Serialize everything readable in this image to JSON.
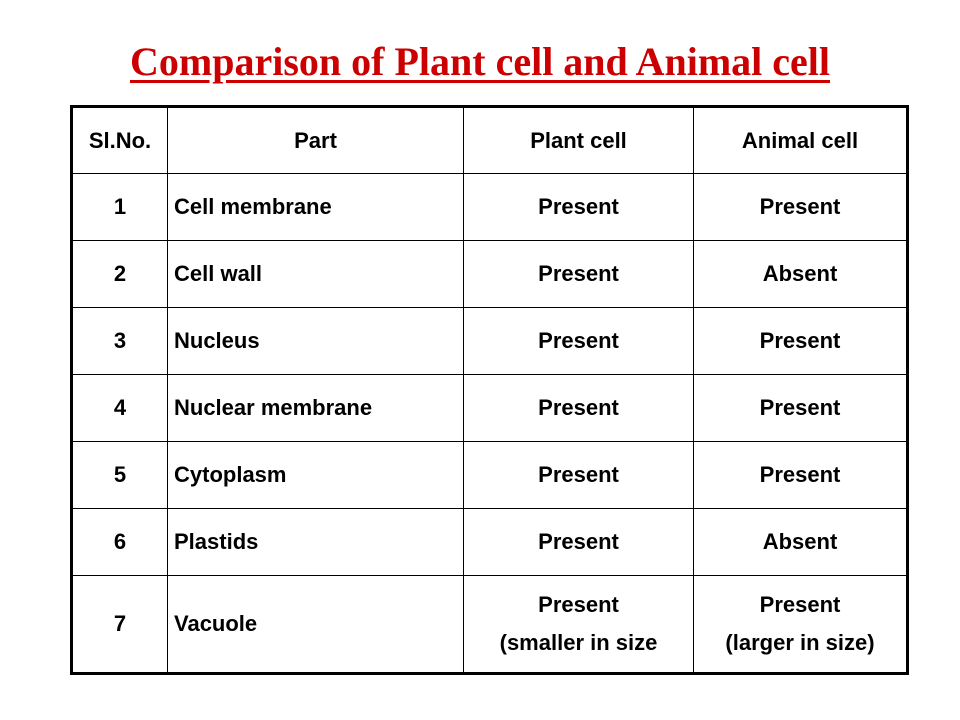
{
  "title": "Comparison of Plant cell and Animal cell",
  "table": {
    "headers": [
      "Sl.No.",
      "Part",
      "Plant cell",
      "Animal cell"
    ],
    "rows": [
      {
        "no": "1",
        "part": "Cell membrane",
        "plant": "Present",
        "animal": "Present"
      },
      {
        "no": "2",
        "part": "Cell wall",
        "plant": "Present",
        "animal": "Absent"
      },
      {
        "no": "3",
        "part": "Nucleus",
        "plant": "Present",
        "animal": "Present"
      },
      {
        "no": "4",
        "part": "Nuclear membrane",
        "plant": "Present",
        "animal": "Present"
      },
      {
        "no": "5",
        "part": "Cytoplasm",
        "plant": "Present",
        "animal": "Present"
      },
      {
        "no": "6",
        "part": "Plastids",
        "plant": "Present",
        "animal": "Absent"
      }
    ],
    "last_row": {
      "no": "7",
      "part": "Vacuole",
      "plant": "Present",
      "plant_note": "(smaller in size",
      "animal": "Present",
      "animal_note": "(larger in size)"
    }
  }
}
